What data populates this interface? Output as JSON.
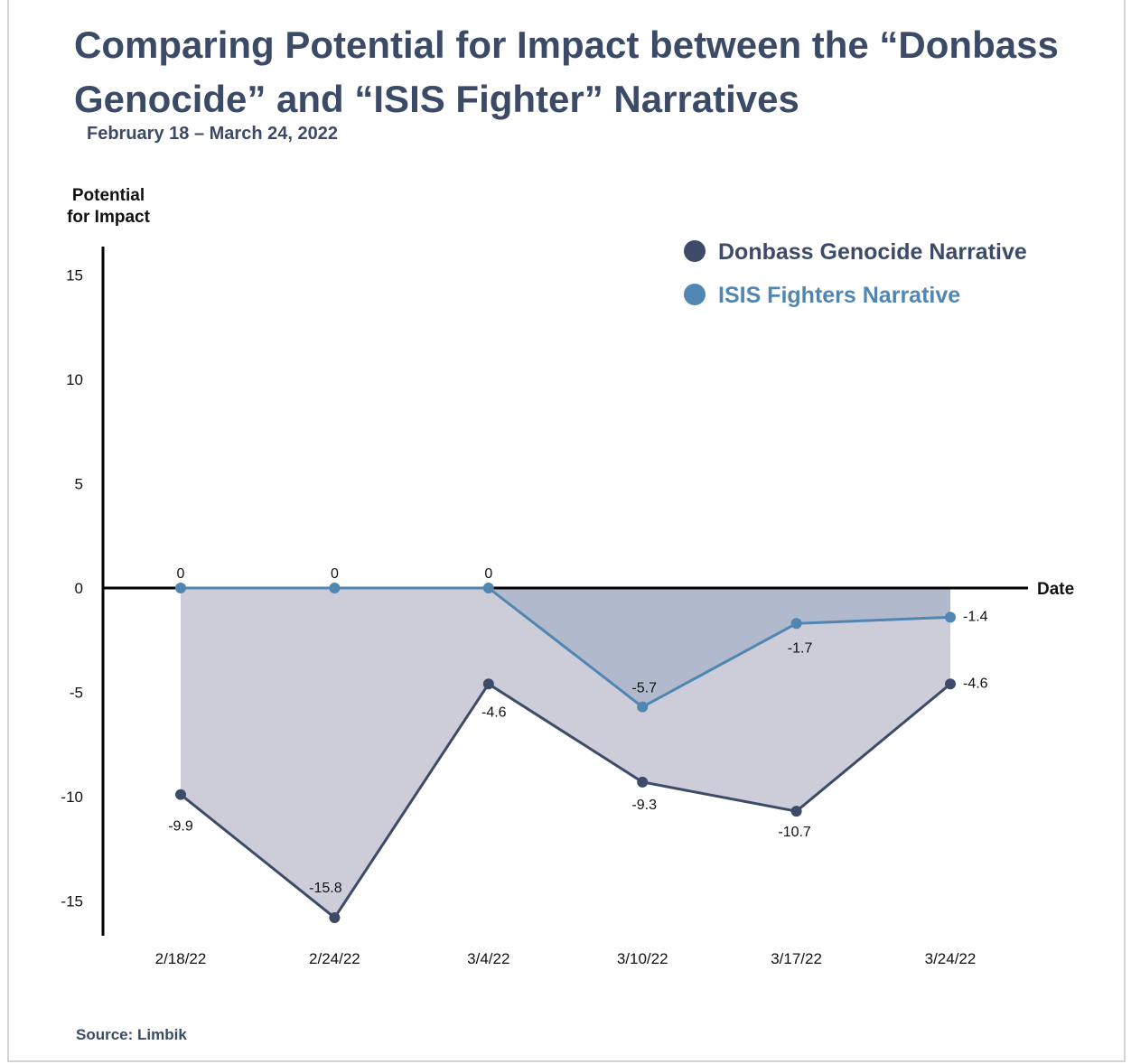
{
  "title": "Comparing Potential for Impact between the “Donbass Genocide” and “ISIS Fighter” Narratives",
  "subtitle": "February 18 – March 24, 2022",
  "source": "Source: Limbik",
  "colors": {
    "donbass": "#3d4b68",
    "isis": "#5286b2",
    "fill_light": "#cdcdd9",
    "fill_dark": "#b1b9cd"
  },
  "chart_data": {
    "type": "line",
    "ylabel_lines": [
      "Potential",
      "for Impact"
    ],
    "xlabel": "Date",
    "categories": [
      "2/18/22",
      "2/24/22",
      "3/4/22",
      "3/10/22",
      "3/17/22",
      "3/24/22"
    ],
    "yticks": [
      15,
      10,
      5,
      0,
      -5,
      -10,
      -15
    ],
    "ylim": [
      -16.5,
      16.5
    ],
    "series": [
      {
        "name": "Donbass Genocide Narrative",
        "values": [
          -9.9,
          -15.8,
          -4.6,
          -9.3,
          -10.7,
          -4.6
        ],
        "color": "#3d4b68"
      },
      {
        "name": "ISIS Fighters Narrative",
        "values": [
          0,
          0,
          0,
          -5.7,
          -1.7,
          -1.4
        ],
        "color": "#5286b2"
      }
    ],
    "legend_position": "top-right",
    "grid": false
  }
}
